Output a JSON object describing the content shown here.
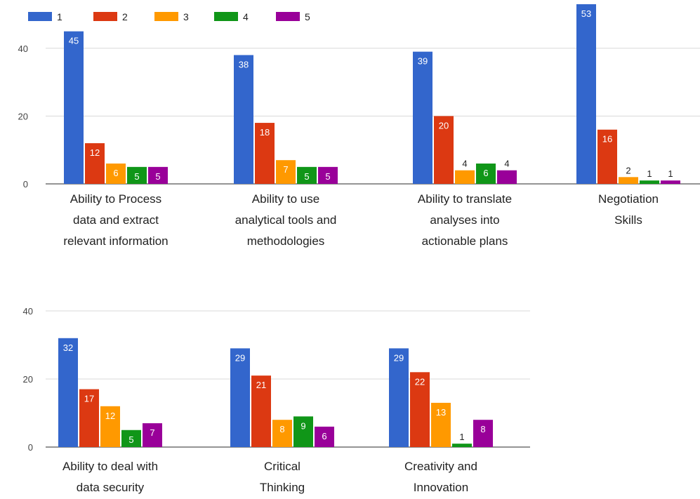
{
  "chart_data": {
    "type": "bar",
    "title": "",
    "xlabel": "",
    "ylabel": "",
    "legend": {
      "position": "top-left",
      "entries": [
        "1",
        "2",
        "3",
        "4",
        "5"
      ]
    },
    "colors": [
      "#3366cc",
      "#dc3912",
      "#ff9900",
      "#109618",
      "#990099"
    ],
    "grid": true,
    "series": [
      {
        "name": "1",
        "values": [
          45,
          38,
          39,
          53,
          32,
          29,
          29
        ]
      },
      {
        "name": "2",
        "values": [
          12,
          18,
          20,
          16,
          17,
          21,
          22
        ]
      },
      {
        "name": "3",
        "values": [
          6,
          7,
          4,
          2,
          12,
          8,
          13
        ]
      },
      {
        "name": "4",
        "values": [
          5,
          5,
          6,
          1,
          5,
          9,
          1
        ]
      },
      {
        "name": "5",
        "values": [
          5,
          5,
          4,
          1,
          7,
          6,
          8
        ]
      }
    ],
    "categories": [
      [
        "Ability to Process",
        "data and extract",
        "relevant information"
      ],
      [
        "Ability to use",
        "analytical tools and",
        "methodologies"
      ],
      [
        "Ability to translate",
        "analyses into",
        "actionable plans"
      ],
      [
        "Negotiation",
        "Skills"
      ],
      [
        "Ability to deal with",
        "data security"
      ],
      [
        "Critical",
        "Thinking"
      ],
      [
        "Creativity and",
        "Innovation"
      ]
    ],
    "panels": [
      {
        "categories": [
          0,
          1,
          2,
          3
        ],
        "yticks": [
          0,
          20,
          40
        ]
      },
      {
        "categories": [
          4,
          5,
          6
        ],
        "yticks": [
          0,
          20,
          40
        ]
      }
    ]
  }
}
